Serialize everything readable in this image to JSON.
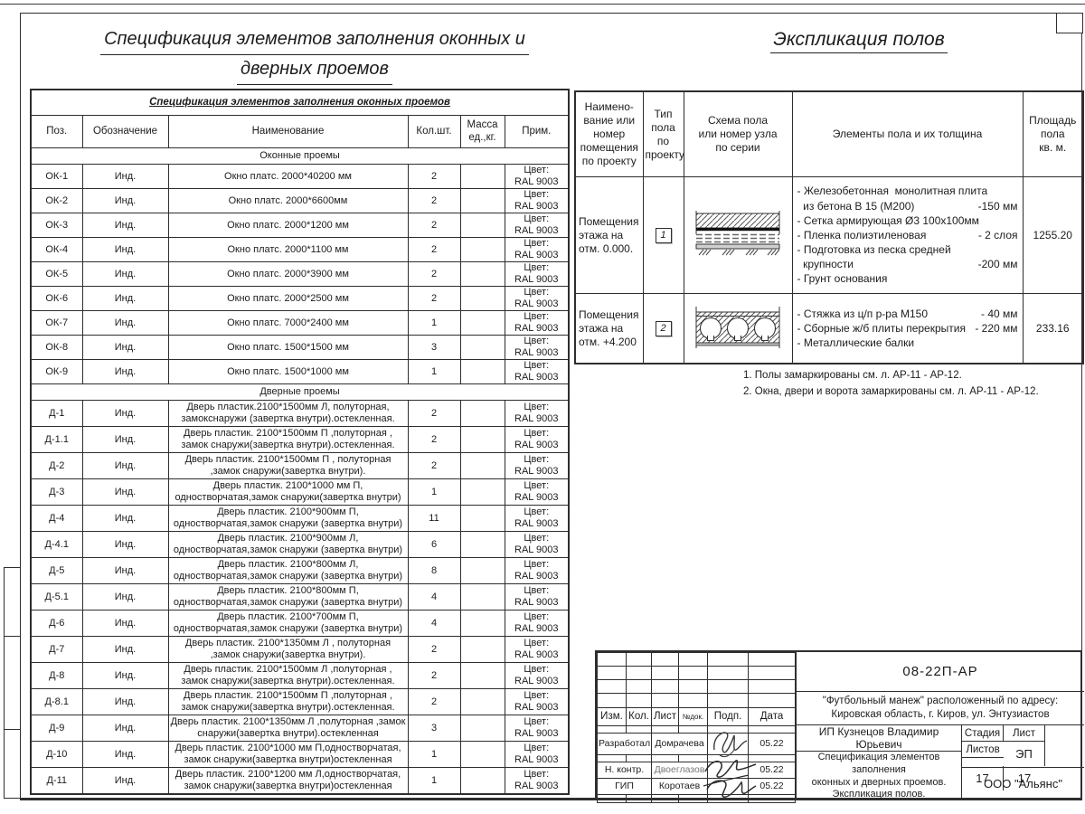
{
  "titles": {
    "spec_line1": "Спецификация элементов заполнения оконных и",
    "spec_line2": "дверных проемов",
    "floors": "Экспликация полов"
  },
  "spec_table": {
    "title": "Спецификация элементов заполнения оконных проемов",
    "columns": {
      "pos": "Поз.",
      "sign": "Обозначение",
      "name": "Наименование",
      "qty": "Кол.шт.",
      "mass": "Масса\nед.,кг.",
      "note": "Прим."
    },
    "rows": [
      {
        "kind": "section",
        "label": "Оконные проемы"
      },
      {
        "kind": "item",
        "pos": "ОК-1",
        "sign": "Инд.",
        "name": "Окно платс. 2000*40200 мм",
        "qty": "2",
        "mass": "",
        "note": "Цвет:\nRAL 9003"
      },
      {
        "kind": "item",
        "pos": "ОК-2",
        "sign": "Инд.",
        "name": "Окно платс. 2000*6600мм",
        "qty": "2",
        "mass": "",
        "note": "Цвет:\nRAL 9003"
      },
      {
        "kind": "item",
        "pos": "ОК-3",
        "sign": "Инд.",
        "name": "Окно платс. 2000*1200 мм",
        "qty": "2",
        "mass": "",
        "note": "Цвет:\nRAL 9003"
      },
      {
        "kind": "item",
        "pos": "ОК-4",
        "sign": "Инд.",
        "name": "Окно платс. 2000*1100 мм",
        "qty": "2",
        "mass": "",
        "note": "Цвет:\nRAL 9003"
      },
      {
        "kind": "item",
        "pos": "ОК-5",
        "sign": "Инд.",
        "name": "Окно платс. 2000*3900 мм",
        "qty": "2",
        "mass": "",
        "note": "Цвет:\nRAL 9003"
      },
      {
        "kind": "item",
        "pos": "ОК-6",
        "sign": "Инд.",
        "name": "Окно платс. 2000*2500 мм",
        "qty": "2",
        "mass": "",
        "note": "Цвет:\nRAL 9003"
      },
      {
        "kind": "item",
        "pos": "ОК-7",
        "sign": "Инд.",
        "name": "Окно платс. 7000*2400 мм",
        "qty": "1",
        "mass": "",
        "note": "Цвет:\nRAL 9003"
      },
      {
        "kind": "item",
        "pos": "ОК-8",
        "sign": "Инд.",
        "name": "Окно платс. 1500*1500 мм",
        "qty": "3",
        "mass": "",
        "note": "Цвет:\nRAL 9003"
      },
      {
        "kind": "item",
        "pos": "ОК-9",
        "sign": "Инд.",
        "name": "Окно платс. 1500*1000 мм",
        "qty": "1",
        "mass": "",
        "note": "Цвет:\nRAL 9003"
      },
      {
        "kind": "section",
        "label": "Дверные проемы"
      },
      {
        "kind": "item",
        "pos": "Д-1",
        "sign": "Инд.",
        "name": "Дверь пластик.2100*1500мм Л, полуторная, замокснаружи (завертка внутри).остекленная.",
        "qty": "2",
        "mass": "",
        "note": "Цвет:\nRAL 9003"
      },
      {
        "kind": "item",
        "pos": "Д-1.1",
        "sign": "Инд.",
        "name": "Дверь пластик. 2100*1500мм П ,полуторная , замок снаружи(завертка внутри).остекленная.",
        "qty": "2",
        "mass": "",
        "note": "Цвет:\nRAL 9003"
      },
      {
        "kind": "item",
        "pos": "Д-2",
        "sign": "Инд.",
        "name": "Дверь пластик. 2100*1500мм П , полуторная ,замок снаружи(завертка внутри).",
        "qty": "2",
        "mass": "",
        "note": "Цвет:\nRAL 9003"
      },
      {
        "kind": "item",
        "pos": "Д-3",
        "sign": "Инд.",
        "name": "Дверь пластик. 2100*1000 мм П, одностворчатая,замок снаружи(завертка внутри)",
        "qty": "1",
        "mass": "",
        "note": "Цвет:\nRAL 9003"
      },
      {
        "kind": "item",
        "pos": "Д-4",
        "sign": "Инд.",
        "name": "Дверь пластик. 2100*900мм П, одностворчатая,замок снаружи (завертка внутри)",
        "qty": "11",
        "mass": "",
        "note": "Цвет:\nRAL 9003"
      },
      {
        "kind": "item",
        "pos": "Д-4.1",
        "sign": "Инд.",
        "name": "Дверь пластик. 2100*900мм Л, одностворчатая,замок снаружи (завертка внутри)",
        "qty": "6",
        "mass": "",
        "note": "Цвет:\nRAL 9003"
      },
      {
        "kind": "item",
        "pos": "Д-5",
        "sign": "Инд.",
        "name": "Дверь пластик. 2100*800мм Л, одностворчатая,замок снаружи (завертка внутри)",
        "qty": "8",
        "mass": "",
        "note": "Цвет:\nRAL 9003"
      },
      {
        "kind": "item",
        "pos": "Д-5.1",
        "sign": "Инд.",
        "name": "Дверь пластик. 2100*800мм П, одностворчатая,замок снаружи (завертка внутри)",
        "qty": "4",
        "mass": "",
        "note": "Цвет:\nRAL 9003"
      },
      {
        "kind": "item",
        "pos": "Д-6",
        "sign": "Инд.",
        "name": "Дверь пластик. 2100*700мм П, одностворчатая,замок снаружи (завертка внутри)",
        "qty": "4",
        "mass": "",
        "note": "Цвет:\nRAL 9003"
      },
      {
        "kind": "item",
        "pos": "Д-7",
        "sign": "Инд.",
        "name": "Дверь пластик. 2100*1350мм Л , полуторная ,замок снаружи(завертка внутри).",
        "qty": "2",
        "mass": "",
        "note": "Цвет:\nRAL 9003"
      },
      {
        "kind": "item",
        "pos": "Д-8",
        "sign": "Инд.",
        "name": "Дверь пластик. 2100*1500мм Л ,полуторная , замок снаружи(завертка внутри).остекленная.",
        "qty": "2",
        "mass": "",
        "note": "Цвет:\nRAL 9003"
      },
      {
        "kind": "item",
        "pos": "Д-8.1",
        "sign": "Инд.",
        "name": "Дверь пластик. 2100*1500мм П ,полуторная , замок снаружи(завертка внутри).остекленная.",
        "qty": "2",
        "mass": "",
        "note": "Цвет:\nRAL 9003"
      },
      {
        "kind": "item",
        "pos": "Д-9",
        "sign": "Инд.",
        "name": "Дверь пластик. 2100*1350мм Л ,полуторная ,замок снаружи(завертка внутри).остекленная",
        "qty": "3",
        "mass": "",
        "note": "Цвет:\nRAL 9003"
      },
      {
        "kind": "item",
        "pos": "Д-10",
        "sign": "Инд.",
        "name": "Дверь пластик. 2100*1000 мм П,одностворчатая, замок снаружи(завертка внутри)остекленная",
        "qty": "1",
        "mass": "",
        "note": "Цвет:\nRAL 9003"
      },
      {
        "kind": "item",
        "pos": "Д-11",
        "sign": "Инд.",
        "name": "Дверь пластик. 2100*1200 мм Л,одностворчатая, замок снаружи(завертка внутри)остекленная",
        "qty": "1",
        "mass": "",
        "note": "Цвет:\nRAL 9003"
      }
    ]
  },
  "floors_table": {
    "columns": {
      "name": "Наимено-\nвание или\nномер\nпомещения\nпо проекту",
      "type": "Тип\nпола\nпо\nпроекту",
      "scheme": "Схема пола\nили номер узла\nпо серии",
      "elements": "Элементы пола и их толщина",
      "area": "Площадь\nпола\nкв. м."
    },
    "rows": [
      {
        "name": "Помещения\nэтажа на\nотм. 0.000.",
        "type": "1",
        "scheme_kind": "ground-floor-section",
        "elements": [
          {
            "text": "- Железобетонная  монолитная плита",
            "value": ""
          },
          {
            "text": "  из бетона В 15 (М200)",
            "value": "-150 мм"
          },
          {
            "text": "- Сетка армирующая Ø3 100х100мм",
            "value": ""
          },
          {
            "text": "- Пленка полиэтиленовая",
            "value": "- 2 слоя"
          },
          {
            "text": "- Подготовка из песка средней",
            "value": ""
          },
          {
            "text": "  крупности",
            "value": "-200 мм"
          },
          {
            "text": "- Грунт основания",
            "value": ""
          }
        ],
        "area": "1255.20"
      },
      {
        "name": "Помещения\nэтажа на\nотм. +4.200",
        "type": "2",
        "scheme_kind": "hollow-slab-section",
        "elements": [
          {
            "text": "- Стяжка из ц/п р-ра М150",
            "value": "- 40 мм"
          },
          {
            "text": "- Сборные ж/б плиты перекрытия",
            "value": "- 220 мм"
          },
          {
            "text": "- Металлические балки",
            "value": ""
          }
        ],
        "area": "233.16"
      }
    ]
  },
  "notes": [
    "1. Полы замаркированы см. л. АР-11 - АР-12.",
    "2. Окна, двери и ворота замаркированы см. л.  АР-11 - АР-12."
  ],
  "title_block": {
    "doc_code": "08-22П-АР",
    "project": "\"Футбольный манеж\" расположенный по адресу:\nКировская область, г. Киров, ул. Энтузиастов",
    "rev_headers": [
      "Изм.",
      "Кол.",
      "Лист",
      "№док.",
      "Подп.",
      "Дата"
    ],
    "sign_rows": [
      {
        "role": "Разработал",
        "name": "Домрачева",
        "date": "05.22"
      },
      {
        "role": "Н. контр.",
        "name": "Двоеглазов",
        "date": "05.22"
      },
      {
        "role": "ГИП",
        "name": "Коротаев",
        "date": "05.22"
      }
    ],
    "client": "ИП Кузнецов Владимир Юрьевич",
    "stage_headers": [
      "Стадия",
      "Лист",
      "Листов"
    ],
    "stage_values": [
      "ЭП",
      "17",
      "17"
    ],
    "sheet_title": "Спецификация элементов заполнения\nоконных и дверных проемов.\nЭкспликация полов.",
    "company": "ООО \"Альянс\""
  }
}
